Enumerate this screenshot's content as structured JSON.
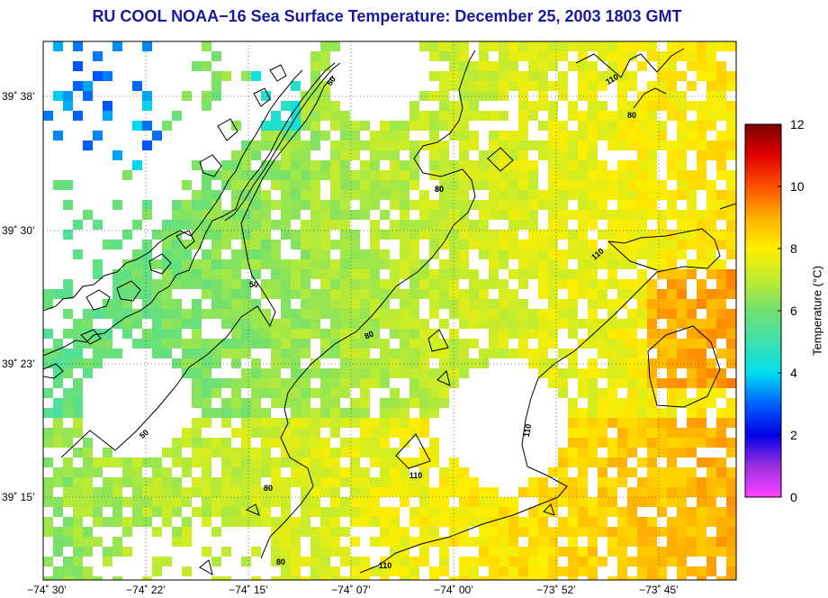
{
  "title": "RU COOL  NOAA−16  Sea Surface Temperature:  December 25, 2003 1803 GMT",
  "lat_labels": [
    "39˚ 38’",
    "39˚ 30’",
    "39˚ 23’",
    "39˚ 15’"
  ],
  "lon_labels": [
    "−74˚ 30’",
    "−74˚ 22’",
    "−74˚ 15’",
    "−74˚ 07’",
    "−74˚ 00’",
    "−73˚ 52’",
    "−73˚ 45’"
  ],
  "colorbar": {
    "title": "Temperature (°C)",
    "min": 0,
    "max": 12,
    "ticks": [
      "0",
      "2",
      "4",
      "6",
      "8",
      "10",
      "12"
    ]
  },
  "contour_labels": [
    "50",
    "50",
    "50",
    "80",
    "80",
    "80",
    "80",
    "80",
    "110",
    "110",
    "110",
    "110",
    "110",
    "80"
  ],
  "colors": {
    "title": "#1a1a9a",
    "coast": "#000000",
    "grid": "#555555"
  }
}
